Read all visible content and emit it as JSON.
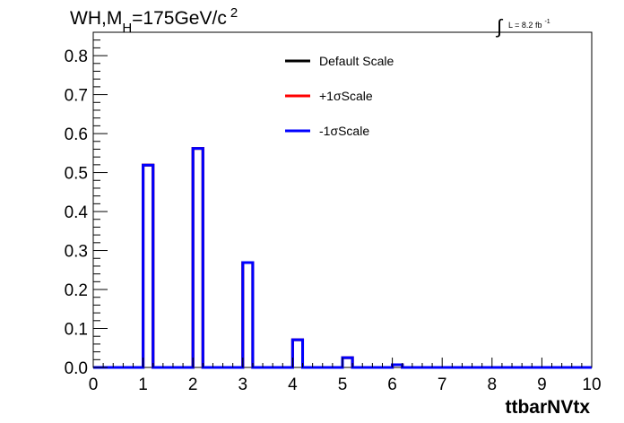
{
  "chart_data": {
    "type": "step-histogram",
    "title": {
      "prefix": "WH,M",
      "subscript": "H",
      "value": "=175GeV/c",
      "superscript": "2"
    },
    "luminosity": {
      "integral": "∫",
      "text": "L = 8.2 fb",
      "superscript": "-1"
    },
    "xlabel": "ttbarNVtx",
    "ylabel": "",
    "xlim": [
      0,
      10
    ],
    "ylim": [
      0,
      0.86
    ],
    "x_ticks": [
      "0",
      "1",
      "2",
      "3",
      "4",
      "5",
      "6",
      "7",
      "8",
      "9",
      "10"
    ],
    "y_ticks": [
      "0.0",
      "0.1",
      "0.2",
      "0.3",
      "0.4",
      "0.5",
      "0.6",
      "0.7",
      "0.8"
    ],
    "bins": {
      "edges": [
        0,
        1,
        1.2,
        2,
        2.2,
        3,
        3.2,
        4,
        4.2,
        5,
        5.2,
        6,
        6.2,
        10
      ],
      "values": [
        0,
        0.519,
        0,
        0.562,
        0,
        0.269,
        0,
        0.071,
        0,
        0.025,
        0,
        0.007,
        0
      ]
    },
    "series": [
      {
        "name": "Default Scale",
        "color": "#000000"
      },
      {
        "name": "+1σScale",
        "color": "#ff0000"
      },
      {
        "name": "-1σScale",
        "color": "#0000ff"
      }
    ],
    "legend_position": "top-center",
    "grid": false
  }
}
